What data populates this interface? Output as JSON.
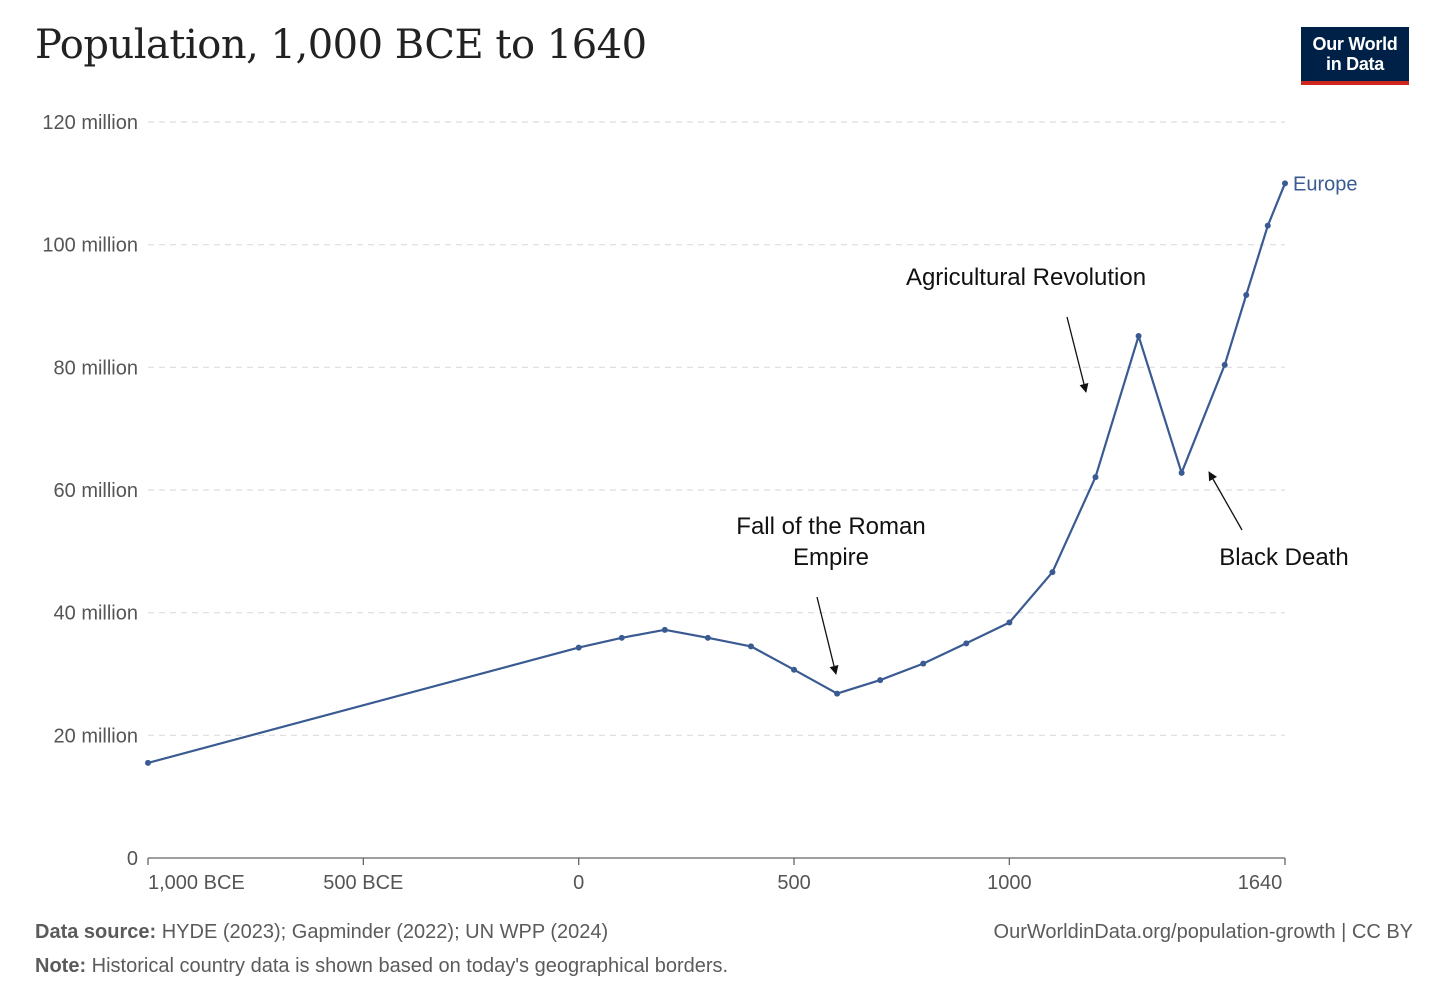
{
  "title": "Population, 1,000 BCE to 1640",
  "logo": {
    "line1": "Our World",
    "line2": "in Data"
  },
  "colors": {
    "series": "#3a5a92",
    "grid": "#dddddd",
    "axis": "#666666",
    "text": "#555555",
    "logo_bg": "#002147",
    "logo_accent": "#ce261e"
  },
  "chart_data": {
    "type": "line",
    "xlim": [
      -1000,
      1640
    ],
    "ylim": [
      0,
      120000000
    ],
    "grid": "horizontal-dashed",
    "x_ticks": [
      {
        "value": -1000,
        "label": "1,000 BCE"
      },
      {
        "value": -500,
        "label": "500 BCE"
      },
      {
        "value": 0,
        "label": "0"
      },
      {
        "value": 500,
        "label": "500"
      },
      {
        "value": 1000,
        "label": "1000"
      },
      {
        "value": 1640,
        "label": "1640"
      }
    ],
    "y_ticks": [
      {
        "value": 0,
        "label": "0"
      },
      {
        "value": 20000000,
        "label": "20 million"
      },
      {
        "value": 40000000,
        "label": "40 million"
      },
      {
        "value": 60000000,
        "label": "60 million"
      },
      {
        "value": 80000000,
        "label": "80 million"
      },
      {
        "value": 100000000,
        "label": "100 million"
      },
      {
        "value": 120000000,
        "label": "120 million"
      }
    ],
    "series": [
      {
        "name": "Europe",
        "color": "#3a5a92",
        "points": [
          [
            -1000,
            15500000
          ],
          [
            0,
            34300000
          ],
          [
            100,
            35900000
          ],
          [
            200,
            37200000
          ],
          [
            300,
            35900000
          ],
          [
            400,
            34500000
          ],
          [
            500,
            30700000
          ],
          [
            600,
            26800000
          ],
          [
            700,
            29000000
          ],
          [
            800,
            31700000
          ],
          [
            900,
            35000000
          ],
          [
            1000,
            38400000
          ],
          [
            1100,
            46600000
          ],
          [
            1200,
            62100000
          ],
          [
            1300,
            85100000
          ],
          [
            1400,
            62800000
          ],
          [
            1500,
            80400000
          ],
          [
            1550,
            91800000
          ],
          [
            1600,
            103100000
          ],
          [
            1640,
            110000000
          ]
        ]
      }
    ],
    "annotations": [
      {
        "lines": [
          "Agricultural Revolution"
        ]
      },
      {
        "lines": [
          "Fall of the Roman",
          "Empire"
        ]
      },
      {
        "lines": [
          "Black Death"
        ]
      }
    ]
  },
  "footer": {
    "source_label": "Data source:",
    "source_text": "HYDE (2023); Gapminder (2022); UN WPP (2024)",
    "note_label": "Note:",
    "note_text": "Historical country data is shown based on today's geographical borders.",
    "url": "OurWorldinData.org/population-growth | CC BY"
  }
}
